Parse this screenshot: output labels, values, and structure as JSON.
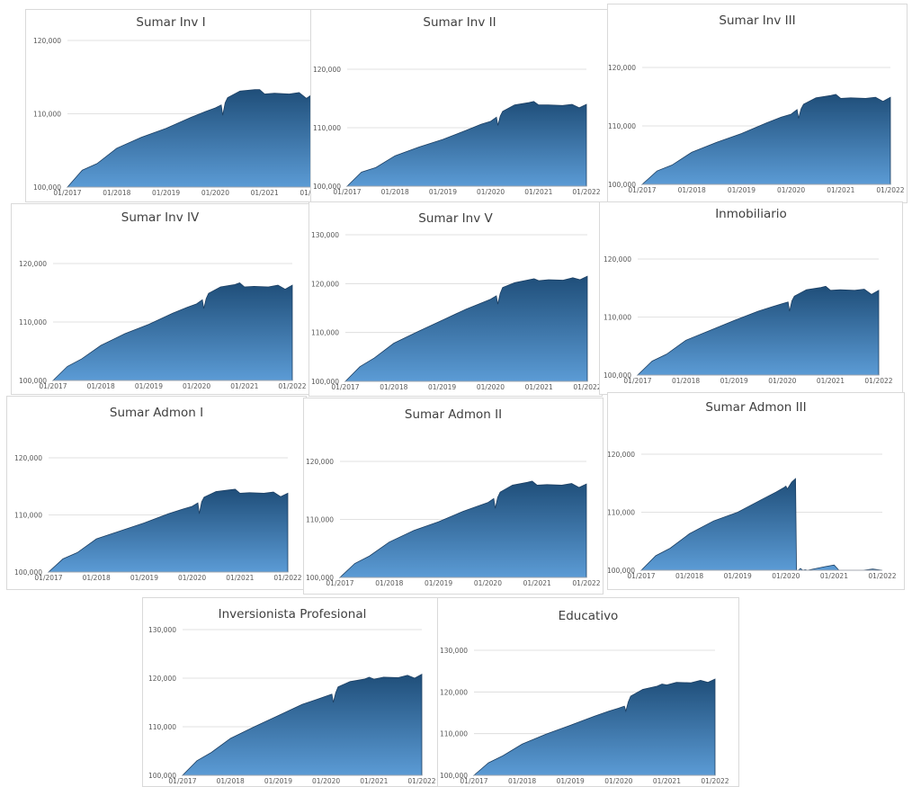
{
  "style": {
    "fill_top": "#1f4e79",
    "fill_bottom": "#5b9bd5",
    "outline": "#1c3f63"
  },
  "x_ticks": [
    "01/2017",
    "01/2018",
    "01/2019",
    "01/2020",
    "01/2021",
    "01/2022"
  ],
  "chart_data": [
    {
      "type": "area",
      "title": "Sumar Inv I",
      "y_ticks": [
        "100,000",
        "110,000",
        "120,000"
      ],
      "ylim": [
        100000,
        120000
      ],
      "x": [
        2017.0,
        2017.3,
        2017.6,
        2018.0,
        2018.5,
        2019.0,
        2019.5,
        2019.8,
        2020.0,
        2020.12,
        2020.15,
        2020.2,
        2020.25,
        2020.5,
        2020.8,
        2020.9,
        2021.0,
        2021.2,
        2021.5,
        2021.7,
        2021.85,
        2022.0
      ],
      "values": [
        100000,
        102300,
        103200,
        105300,
        106800,
        108000,
        109500,
        110300,
        110800,
        111200,
        109800,
        111500,
        112200,
        113100,
        113300,
        113300,
        112700,
        112800,
        112700,
        112900,
        112100,
        112800
      ],
      "grid": true
    },
    {
      "type": "area",
      "title": "Sumar Inv II",
      "y_ticks": [
        "100,000",
        "110,000",
        "120,000"
      ],
      "ylim": [
        100000,
        120000
      ],
      "x": [
        2017.0,
        2017.3,
        2017.6,
        2018.0,
        2018.5,
        2019.0,
        2019.5,
        2019.8,
        2020.0,
        2020.12,
        2020.15,
        2020.2,
        2020.25,
        2020.5,
        2020.8,
        2020.9,
        2021.0,
        2021.2,
        2021.5,
        2021.7,
        2021.85,
        2022.0
      ],
      "values": [
        100000,
        102400,
        103200,
        105200,
        106700,
        108000,
        109600,
        110600,
        111100,
        111800,
        110400,
        112000,
        112800,
        113900,
        114300,
        114500,
        113900,
        113900,
        113800,
        114000,
        113400,
        114000
      ],
      "grid": true
    },
    {
      "type": "area",
      "title": "Sumar Inv III",
      "y_ticks": [
        "100,000",
        "110,000",
        "120,000"
      ],
      "ylim": [
        100000,
        120000
      ],
      "x": [
        2017.0,
        2017.3,
        2017.6,
        2018.0,
        2018.5,
        2019.0,
        2019.5,
        2019.8,
        2020.0,
        2020.12,
        2020.15,
        2020.2,
        2020.25,
        2020.5,
        2020.8,
        2020.9,
        2021.0,
        2021.2,
        2021.5,
        2021.7,
        2021.85,
        2022.0
      ],
      "values": [
        100000,
        102300,
        103300,
        105500,
        107200,
        108700,
        110500,
        111500,
        112000,
        112800,
        111300,
        112900,
        113700,
        114800,
        115200,
        115400,
        114700,
        114800,
        114700,
        114900,
        114200,
        114900
      ],
      "grid": true
    },
    {
      "type": "area",
      "title": "Sumar Inv IV",
      "y_ticks": [
        "100,000",
        "110,000",
        "120,000"
      ],
      "ylim": [
        100000,
        120000
      ],
      "x": [
        2017.0,
        2017.3,
        2017.6,
        2018.0,
        2018.5,
        2019.0,
        2019.5,
        2019.8,
        2020.0,
        2020.12,
        2020.15,
        2020.2,
        2020.25,
        2020.5,
        2020.8,
        2020.9,
        2021.0,
        2021.2,
        2021.5,
        2021.7,
        2021.85,
        2022.0
      ],
      "values": [
        100000,
        102400,
        103700,
        106000,
        108000,
        109600,
        111500,
        112500,
        113100,
        113800,
        112300,
        114000,
        114900,
        116000,
        116400,
        116700,
        116000,
        116100,
        116000,
        116300,
        115600,
        116300
      ],
      "grid": true
    },
    {
      "type": "area",
      "title": "Sumar Inv V",
      "y_ticks": [
        "100,000",
        "110,000",
        "120,000",
        "130,000"
      ],
      "ylim": [
        100000,
        130000
      ],
      "x": [
        2017.0,
        2017.3,
        2017.6,
        2018.0,
        2018.5,
        2019.0,
        2019.5,
        2019.8,
        2020.0,
        2020.12,
        2020.15,
        2020.2,
        2020.25,
        2020.5,
        2020.8,
        2020.9,
        2021.0,
        2021.2,
        2021.5,
        2021.7,
        2021.85,
        2022.0
      ],
      "values": [
        100000,
        103000,
        104800,
        107800,
        110200,
        112500,
        114800,
        116000,
        116800,
        117500,
        115800,
        118000,
        119200,
        120200,
        120800,
        121000,
        120600,
        120800,
        120700,
        121200,
        120800,
        121500
      ],
      "grid": true
    },
    {
      "type": "area",
      "title": "Inmobiliario",
      "y_ticks": [
        "100,000",
        "110,000",
        "120,000"
      ],
      "ylim": [
        100000,
        120000
      ],
      "x": [
        2017.0,
        2017.3,
        2017.6,
        2018.0,
        2018.5,
        2019.0,
        2019.5,
        2019.8,
        2020.0,
        2020.12,
        2020.15,
        2020.2,
        2020.25,
        2020.5,
        2020.8,
        2020.9,
        2021.0,
        2021.2,
        2021.5,
        2021.7,
        2021.85,
        2022.0
      ],
      "values": [
        100000,
        102400,
        103600,
        106000,
        107700,
        109400,
        111000,
        111800,
        112300,
        112600,
        111000,
        112800,
        113600,
        114700,
        115100,
        115300,
        114600,
        114700,
        114600,
        114800,
        113900,
        114600
      ],
      "grid": true
    },
    {
      "type": "area",
      "title": "Sumar Admon I",
      "y_ticks": [
        "100,000",
        "110,000",
        "120,000"
      ],
      "ylim": [
        100000,
        120000
      ],
      "x": [
        2017.0,
        2017.3,
        2017.6,
        2018.0,
        2018.5,
        2019.0,
        2019.5,
        2019.8,
        2020.0,
        2020.12,
        2020.15,
        2020.2,
        2020.25,
        2020.5,
        2020.8,
        2020.9,
        2021.0,
        2021.2,
        2021.5,
        2021.7,
        2021.85,
        2022.0
      ],
      "values": [
        100000,
        102300,
        103400,
        105800,
        107200,
        108600,
        110200,
        111000,
        111500,
        112100,
        110200,
        112300,
        113100,
        114100,
        114400,
        114500,
        113800,
        113900,
        113800,
        114000,
        113200,
        113800
      ],
      "grid": true
    },
    {
      "type": "area",
      "title": "Sumar Admon II",
      "y_ticks": [
        "100,000",
        "110,000",
        "120,000"
      ],
      "ylim": [
        100000,
        120000
      ],
      "x": [
        2017.0,
        2017.3,
        2017.6,
        2018.0,
        2018.5,
        2019.0,
        2019.5,
        2019.8,
        2020.0,
        2020.12,
        2020.15,
        2020.2,
        2020.25,
        2020.5,
        2020.8,
        2020.9,
        2021.0,
        2021.2,
        2021.5,
        2021.7,
        2021.85,
        2022.0
      ],
      "values": [
        100000,
        102400,
        103700,
        106100,
        108100,
        109600,
        111400,
        112300,
        112900,
        113600,
        111900,
        113800,
        114700,
        115900,
        116400,
        116600,
        115900,
        116000,
        115900,
        116200,
        115500,
        116100
      ],
      "grid": true
    },
    {
      "type": "area",
      "title": "Sumar Admon III",
      "y_ticks": [
        "100,000",
        "110,000",
        "120,000"
      ],
      "ylim": [
        100000,
        120000
      ],
      "x": [
        2017.0,
        2017.3,
        2017.6,
        2018.0,
        2018.5,
        2019.0,
        2019.5,
        2019.8,
        2019.95,
        2020.0,
        2020.03,
        2020.12,
        2020.2,
        2020.22,
        2020.26,
        2020.3,
        2020.35,
        2020.4,
        2020.45,
        2020.8,
        2021.0,
        2021.1,
        2021.6,
        2021.8,
        2022.0
      ],
      "values": [
        100000,
        102500,
        103800,
        106300,
        108500,
        110000,
        112200,
        113500,
        114200,
        114500,
        114000,
        115200,
        115800,
        100000,
        100000,
        100300,
        100000,
        100100,
        100000,
        100600,
        100900,
        100000,
        100000,
        100200,
        100000
      ],
      "grid": true
    },
    {
      "type": "area",
      "title": "Inversionista Profesional",
      "y_ticks": [
        "100,000",
        "110,000",
        "120,000",
        "130,000"
      ],
      "ylim": [
        100000,
        130000
      ],
      "x": [
        2017.0,
        2017.3,
        2017.6,
        2018.0,
        2018.5,
        2019.0,
        2019.5,
        2019.8,
        2020.0,
        2020.12,
        2020.15,
        2020.2,
        2020.25,
        2020.5,
        2020.8,
        2020.9,
        2021.0,
        2021.2,
        2021.5,
        2021.7,
        2021.85,
        2022.0
      ],
      "values": [
        100000,
        103000,
        104700,
        107600,
        110000,
        112300,
        114600,
        115600,
        116300,
        116700,
        115000,
        117000,
        118200,
        119300,
        119800,
        120200,
        119800,
        120200,
        120100,
        120600,
        120000,
        120800
      ],
      "grid": true
    },
    {
      "type": "area",
      "title": "Educativo",
      "y_ticks": [
        "100,000",
        "110,000",
        "120,000",
        "130,000"
      ],
      "ylim": [
        100000,
        130000
      ],
      "x": [
        2017.0,
        2017.3,
        2017.6,
        2018.0,
        2018.5,
        2019.0,
        2019.5,
        2019.8,
        2020.0,
        2020.12,
        2020.15,
        2020.2,
        2020.25,
        2020.5,
        2020.8,
        2020.9,
        2021.0,
        2021.2,
        2021.5,
        2021.7,
        2021.85,
        2022.0
      ],
      "values": [
        100000,
        103000,
        104700,
        107500,
        109900,
        112000,
        114200,
        115400,
        116100,
        116600,
        115400,
        117600,
        119000,
        120600,
        121400,
        121900,
        121700,
        122300,
        122200,
        122800,
        122300,
        123100
      ],
      "grid": true
    }
  ]
}
